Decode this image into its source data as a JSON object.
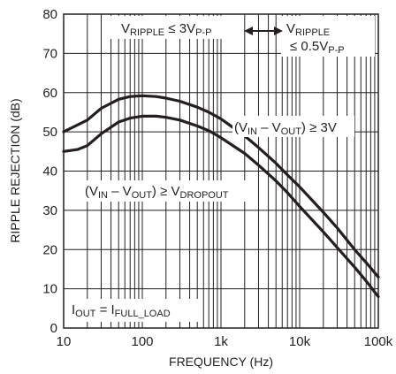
{
  "chart_data": {
    "type": "line",
    "xlabel": "FREQUENCY (Hz)",
    "ylabel": "RIPPLE REJECTION (dB)",
    "xscale": "log",
    "xlim": [
      10,
      100000
    ],
    "ylim": [
      0,
      80
    ],
    "grid": true,
    "xticks": [
      {
        "value": 10,
        "label": "10"
      },
      {
        "value": 100,
        "label": "100"
      },
      {
        "value": 1000,
        "label": "1k"
      },
      {
        "value": 10000,
        "label": "10k"
      },
      {
        "value": 100000,
        "label": "100k"
      }
    ],
    "yticks": [
      {
        "value": 0,
        "label": "0"
      },
      {
        "value": 10,
        "label": "10"
      },
      {
        "value": 20,
        "label": "20"
      },
      {
        "value": 30,
        "label": "30"
      },
      {
        "value": 40,
        "label": "40"
      },
      {
        "value": 50,
        "label": "50"
      },
      {
        "value": 60,
        "label": "60"
      },
      {
        "value": 70,
        "label": "70"
      },
      {
        "value": 80,
        "label": "80"
      }
    ],
    "series": [
      {
        "label_parts": [
          "(V",
          "IN",
          " – V",
          "OUT",
          ") ≥ 3V"
        ],
        "points": [
          [
            10,
            50
          ],
          [
            20,
            53
          ],
          [
            30,
            56
          ],
          [
            50,
            58.3
          ],
          [
            70,
            59
          ],
          [
            100,
            59.2
          ],
          [
            150,
            59
          ],
          [
            200,
            58.6
          ],
          [
            300,
            57.8
          ],
          [
            500,
            56.3
          ],
          [
            700,
            55
          ],
          [
            1000,
            53.3
          ],
          [
            2000,
            49
          ],
          [
            3000,
            46
          ],
          [
            5000,
            42
          ],
          [
            7000,
            39
          ],
          [
            10000,
            36
          ],
          [
            20000,
            29.5
          ],
          [
            30000,
            25.5
          ],
          [
            50000,
            20
          ],
          [
            70000,
            16.7
          ],
          [
            100000,
            13
          ]
        ]
      },
      {
        "label_parts": [
          "(V",
          "IN",
          " – V",
          "OUT",
          ") ≥ V",
          "DROPOUT"
        ],
        "points": [
          [
            10,
            45
          ],
          [
            15,
            45.5
          ],
          [
            20,
            46.5
          ],
          [
            30,
            49.5
          ],
          [
            50,
            52.5
          ],
          [
            70,
            53.5
          ],
          [
            100,
            54
          ],
          [
            150,
            54
          ],
          [
            200,
            53.7
          ],
          [
            300,
            53
          ],
          [
            500,
            51.5
          ],
          [
            700,
            50.3
          ],
          [
            1000,
            48.5
          ],
          [
            2000,
            44.5
          ],
          [
            3000,
            41.5
          ],
          [
            5000,
            37.5
          ],
          [
            7000,
            34.5
          ],
          [
            10000,
            31
          ],
          [
            20000,
            24.5
          ],
          [
            30000,
            20.5
          ],
          [
            50000,
            15.5
          ],
          [
            70000,
            12
          ],
          [
            100000,
            8
          ]
        ]
      }
    ],
    "annotations": [
      {
        "id": "ripple-3vpp",
        "parts": [
          "V",
          "RIPPLE",
          " ≤ 3V",
          "P-P"
        ]
      },
      {
        "id": "ripple-05vpp",
        "parts": [
          "V",
          "RIPPLE",
          "≤ 0.5V",
          "P-P"
        ]
      },
      {
        "id": "iout",
        "parts": [
          "I",
          "OUT",
          " = I",
          "FULL_LOAD"
        ]
      }
    ]
  }
}
